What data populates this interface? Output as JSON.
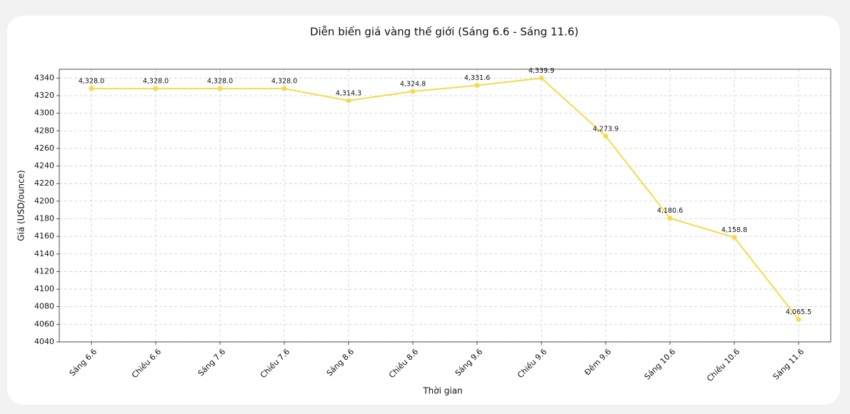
{
  "chart_data": {
    "type": "line",
    "title": "Diễn biến giá vàng thế giới (Sáng 6.6 - Sáng 11.6)",
    "x_label": "Thời gian",
    "y_label": "Giá (USD/ounce)",
    "categories": [
      "Sáng 6.6",
      "Chiều 6.6",
      "Sáng 7.6",
      "Chiều 7.6",
      "Sáng 8.6",
      "Chiều 8.6",
      "Sáng 9.6",
      "Chiều 9.6",
      "Đêm 9.6",
      "Sáng 10.6",
      "Chiều 10.6",
      "Sáng 11.6"
    ],
    "series": [
      {
        "name": "Giá vàng",
        "color": "#f4da4f",
        "values": [
          4328.0,
          4328.0,
          4328.0,
          4328.0,
          4314.3,
          4324.8,
          4331.6,
          4339.9,
          4273.9,
          4180.6,
          4158.8,
          4065.5
        ],
        "value_labels": [
          "4,328.0",
          "4,328.0",
          "4,328.0",
          "4,328.0",
          "4,314.3",
          "4,324.8",
          "4,331.6",
          "4,339.9",
          "4,273.9",
          "4,180.6",
          "4,158.8",
          "4,065.5"
        ]
      }
    ],
    "ylim": [
      4040,
      4350
    ],
    "yticks": [
      4040,
      4060,
      4080,
      4100,
      4120,
      4140,
      4160,
      4180,
      4200,
      4220,
      4240,
      4260,
      4280,
      4300,
      4320,
      4340
    ],
    "grid": true
  }
}
